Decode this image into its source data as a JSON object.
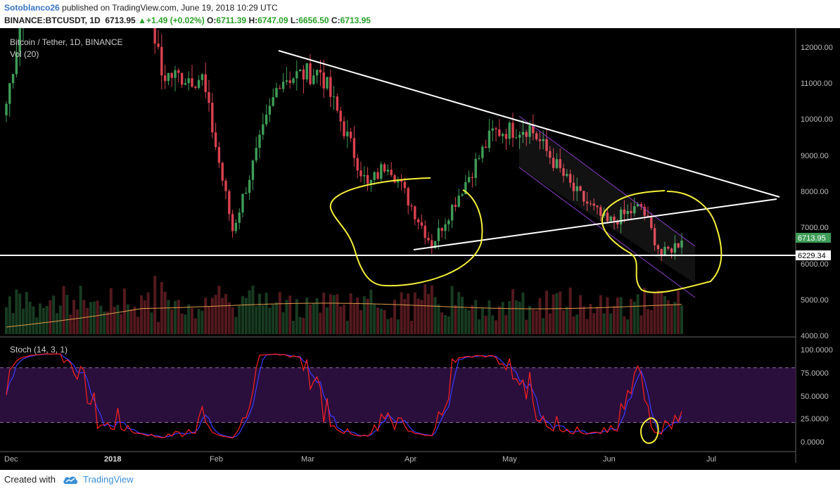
{
  "header": {
    "user": "Sotoblanco26",
    "published_text": " published on TradingView.com, June 19, 2018 10:29 UTC",
    "symbol": "BINANCE:BTCUSDT, 1D",
    "last": "6713.95",
    "change": "+1.49 (+0.02%)",
    "o_label": "O:",
    "o": "6711.39",
    "h_label": "H:",
    "h": "6747.09",
    "l_label": "L:",
    "l": "6656.50",
    "c_label": "C:",
    "c": "6713.95"
  },
  "legend": {
    "main": "Bitcoin / Tether, 1D, BINANCE",
    "vol": "Vol (20)",
    "stoch": "Stoch (14, 3, 1)"
  },
  "footer": {
    "created_with": "Created with",
    "brand": "TradingView"
  },
  "colors": {
    "background": "#000000",
    "up": "#3e9c57",
    "down": "#d9414f",
    "stoch_k": "#ff2020",
    "stoch_d": "#3a3aff",
    "stoch_band": "#2a0f3c",
    "trendline": "#ffffff",
    "marker": "#f5f03a",
    "channel": "#8a3fc4",
    "vol_ma": "#e09a4a"
  },
  "chart_data": [
    {
      "type": "candlestick",
      "title": "Bitcoin / Tether, 1D, BINANCE",
      "x_ticks": [
        "Dec",
        "2018",
        "Feb",
        "Mar",
        "Apr",
        "May",
        "Jun",
        "Jul"
      ],
      "y_ticks": [
        "12000.00",
        "11000.00",
        "10000.00",
        "9000.00",
        "8000.00",
        "7000.00",
        "6000.00",
        "5000.00",
        "4000.00"
      ],
      "price_labels": {
        "last": "6713.95",
        "support": "6229.34"
      },
      "ylim": [
        3900,
        12600
      ],
      "approx_close_keypoints": [
        {
          "date": "2017-12-01",
          "close": 10500
        },
        {
          "date": "2017-12-17",
          "close": 19000
        },
        {
          "date": "2018-01-06",
          "close": 16500
        },
        {
          "date": "2018-01-16",
          "close": 11300
        },
        {
          "date": "2018-01-28",
          "close": 11200
        },
        {
          "date": "2018-02-06",
          "close": 7000
        },
        {
          "date": "2018-02-20",
          "close": 11200
        },
        {
          "date": "2018-03-04",
          "close": 11400
        },
        {
          "date": "2018-03-18",
          "close": 8200
        },
        {
          "date": "2018-03-24",
          "close": 8900
        },
        {
          "date": "2018-04-06",
          "close": 6600
        },
        {
          "date": "2018-04-14",
          "close": 8000
        },
        {
          "date": "2018-04-24",
          "close": 9700
        },
        {
          "date": "2018-05-05",
          "close": 9850
        },
        {
          "date": "2018-05-18",
          "close": 8100
        },
        {
          "date": "2018-05-28",
          "close": 7200
        },
        {
          "date": "2018-06-07",
          "close": 7650
        },
        {
          "date": "2018-06-13",
          "close": 6300
        },
        {
          "date": "2018-06-19",
          "close": 6713.95
        }
      ]
    },
    {
      "type": "line",
      "title": "Stoch (14, 3, 1)",
      "y_ticks": [
        "100.0000",
        "75.0000",
        "50.0000",
        "25.0000",
        "0.0000"
      ],
      "ylim": [
        -8,
        108
      ],
      "bands": [
        20,
        80
      ]
    }
  ]
}
